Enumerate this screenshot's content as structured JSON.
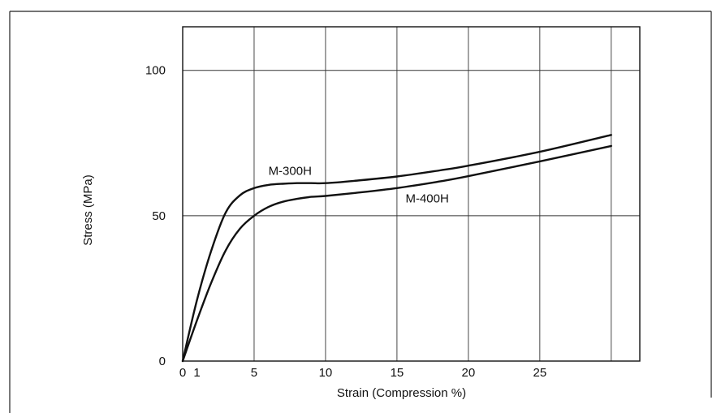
{
  "chart_data": {
    "type": "line",
    "title": "",
    "xlabel": "Strain  (Compression %)",
    "ylabel": "Stress  (MPa)",
    "xlim": [
      0,
      32
    ],
    "ylim": [
      0,
      115
    ],
    "x_ticks": [
      0,
      1,
      5,
      10,
      15,
      20,
      25
    ],
    "x_tick_labels": [
      "0",
      "1",
      "5",
      "10",
      "15",
      "20",
      "25"
    ],
    "x_grid": [
      5,
      10,
      15,
      20,
      25,
      30
    ],
    "y_ticks": [
      0,
      50,
      100
    ],
    "y_tick_labels": [
      "0",
      "50",
      "100"
    ],
    "grid": true,
    "series": [
      {
        "name": "M-300H",
        "label_at": [
          6,
          64
        ],
        "points": [
          [
            0,
            0
          ],
          [
            1,
            21
          ],
          [
            2,
            38
          ],
          [
            3,
            51
          ],
          [
            4,
            57
          ],
          [
            5,
            59.5
          ],
          [
            6,
            60.6
          ],
          [
            7,
            61
          ],
          [
            8,
            61.2
          ],
          [
            9,
            61.2
          ],
          [
            10,
            61.2
          ],
          [
            12,
            62
          ],
          [
            15,
            63.5
          ],
          [
            18,
            65.6
          ],
          [
            20,
            67.2
          ],
          [
            25,
            72
          ],
          [
            30,
            77.8
          ]
        ]
      },
      {
        "name": "M-400H",
        "label_at": [
          15.6,
          54.5
        ],
        "points": [
          [
            0,
            0
          ],
          [
            1,
            14
          ],
          [
            2,
            27
          ],
          [
            3,
            38
          ],
          [
            4,
            45.5
          ],
          [
            5,
            50
          ],
          [
            6,
            53
          ],
          [
            7,
            54.8
          ],
          [
            8,
            55.8
          ],
          [
            9,
            56.5
          ],
          [
            10,
            56.8
          ],
          [
            12,
            57.8
          ],
          [
            15,
            59.5
          ],
          [
            18,
            61.8
          ],
          [
            20,
            63.6
          ],
          [
            25,
            68.7
          ],
          [
            30,
            74
          ]
        ]
      }
    ]
  }
}
